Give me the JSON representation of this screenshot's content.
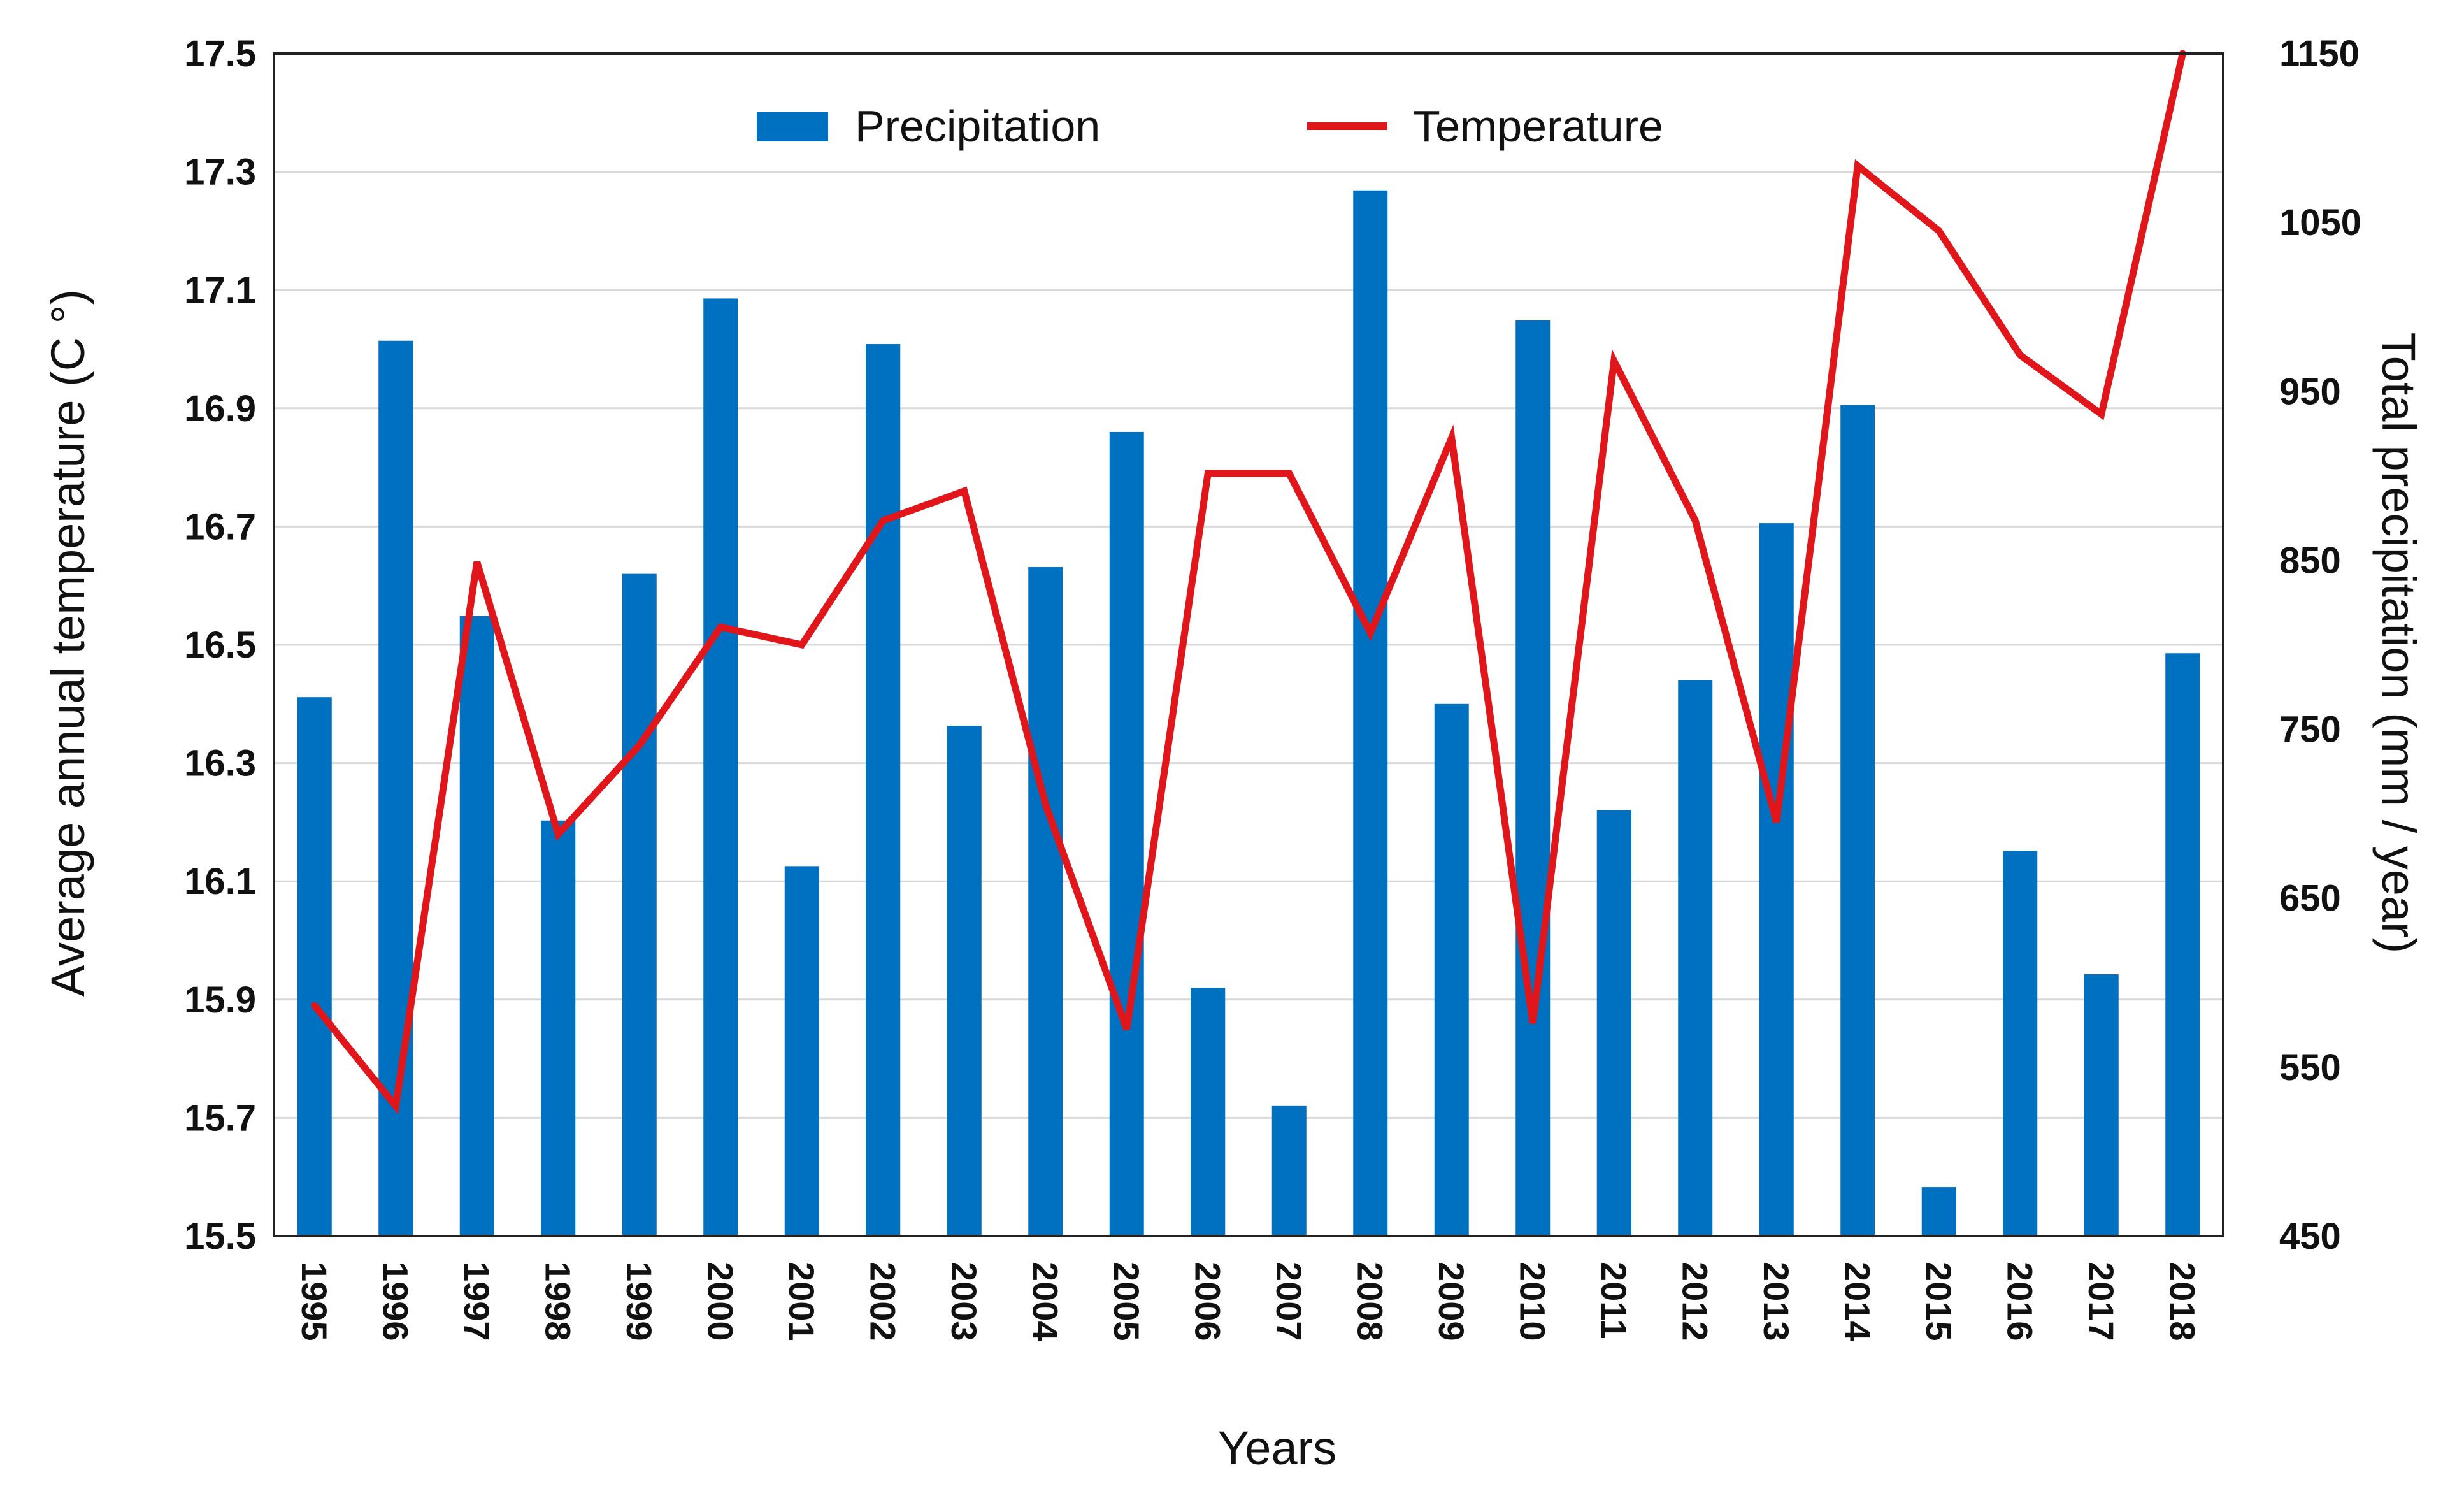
{
  "chart_data": {
    "type": "bar+line",
    "title": "",
    "xlabel": "Years",
    "ylabel_left": "Average annual temperature (C °)",
    "ylabel_right": "Total precipitation (mm / year)",
    "categories": [
      "1995",
      "1996",
      "1997",
      "1998",
      "1999",
      "2000",
      "2001",
      "2002",
      "2003",
      "2004",
      "2005",
      "2006",
      "2007",
      "2008",
      "2009",
      "2010",
      "2011",
      "2012",
      "2013",
      "2014",
      "2015",
      "2016",
      "2017",
      "2018"
    ],
    "ylim_left": [
      15.5,
      17.5
    ],
    "ylim_right": [
      450,
      1150
    ],
    "yticks_left": [
      "15.5",
      "15.7",
      "15.9",
      "16.1",
      "16.3",
      "16.5",
      "16.7",
      "16.9",
      "17.1",
      "17.3",
      "17.5"
    ],
    "yticks_right": [
      "450",
      "550",
      "650",
      "750",
      "850",
      "950",
      "1050",
      "1150"
    ],
    "grid": true,
    "legend_position": "top-center",
    "series": [
      {
        "name": "Precipitation",
        "kind": "bar",
        "axis": "right",
        "color": "#0070C0",
        "values": [
          769,
          980,
          817,
          696,
          842,
          1005,
          669,
          978,
          752,
          846,
          926,
          597,
          527,
          1069,
          765,
          992,
          702,
          779,
          872,
          942,
          479,
          678,
          605,
          795
        ]
      },
      {
        "name": "Temperature",
        "kind": "line",
        "axis": "left",
        "color": "#E0161B",
        "values": [
          15.89,
          15.72,
          16.64,
          16.18,
          16.33,
          16.53,
          16.5,
          16.71,
          16.76,
          16.23,
          15.85,
          16.79,
          16.79,
          16.52,
          16.85,
          15.86,
          16.98,
          16.71,
          16.2,
          17.31,
          17.2,
          16.99,
          16.89,
          17.5
        ]
      }
    ]
  }
}
